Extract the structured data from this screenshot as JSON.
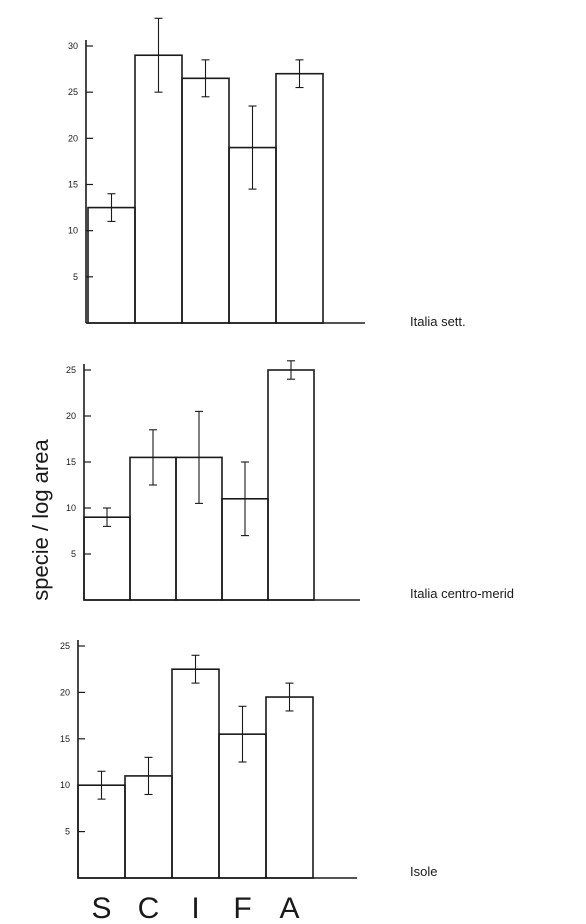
{
  "chart_data": {
    "type": "bar",
    "ylabel": "specie / log area",
    "categories": [
      "S",
      "C",
      "I",
      "F",
      "A"
    ],
    "panels": [
      {
        "label": "Italia sett.",
        "ylim": [
          0,
          30
        ],
        "yticks": [
          5,
          10,
          15,
          20,
          25,
          30
        ],
        "values": [
          12.5,
          29,
          26.5,
          19,
          27
        ],
        "errors": [
          1.5,
          4,
          2,
          4.5,
          1.5
        ]
      },
      {
        "label": "Italia centro-merid",
        "ylim": [
          0,
          25
        ],
        "yticks": [
          5,
          10,
          15,
          20,
          25
        ],
        "values": [
          9,
          15.5,
          15.5,
          11,
          25
        ],
        "errors": [
          1,
          3,
          5,
          4,
          1
        ]
      },
      {
        "label": "Isole",
        "ylim": [
          0,
          25
        ],
        "yticks": [
          5,
          10,
          15,
          20,
          25
        ],
        "values": [
          10,
          11,
          22.5,
          15.5,
          19.5
        ],
        "errors": [
          1.5,
          2,
          1.5,
          3,
          1.5
        ]
      }
    ],
    "grid": false,
    "legend": "none"
  }
}
